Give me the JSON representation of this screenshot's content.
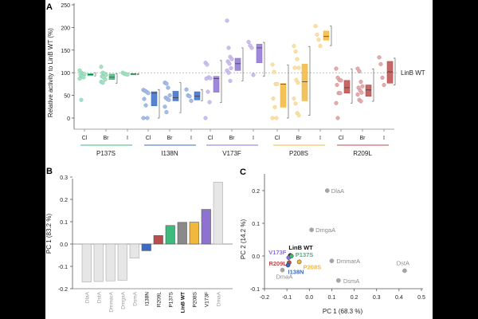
{
  "colors": {
    "P137S": "#3dbb7d",
    "I138N": "#3a6cc6",
    "V173F": "#8e72d2",
    "P208S": "#f2b73d",
    "R209L": "#b94c4c",
    "LinB WT": "#8a8a8a",
    "wildtype": "#e6e6e6",
    "scatter_wildtype": "#a6a6a6"
  },
  "chart_data": [
    {
      "panel": "A",
      "type": "box",
      "ylabel": "Relative activity to LinB WT (%)",
      "ylim": [
        -20,
        250
      ],
      "yticks": [
        0,
        50,
        100,
        150,
        200,
        250
      ],
      "reference_line": {
        "value": 100,
        "label": "LinB WT"
      },
      "groups": [
        {
          "name": "P137S",
          "conditions": [
            {
              "label": "Cl",
              "points": [
                105,
                100,
                98,
                97,
                95,
                92,
                90,
                87,
                40
              ],
              "box": [
                94,
                96,
                98
              ],
              "whisker": [
                93,
                100
              ]
            },
            {
              "label": "Br",
              "points": [
                113,
                100,
                98,
                95,
                92,
                90,
                85,
                80,
                78
              ],
              "box": [
                85,
                90,
                97
              ],
              "whisker": [
                77,
                98
              ]
            },
            {
              "label": "I",
              "points": [
                100,
                98,
                97,
                96
              ],
              "box": [
                96,
                97,
                98
              ],
              "whisker": [
                96,
                98
              ]
            }
          ]
        },
        {
          "name": "I138N",
          "conditions": [
            {
              "label": "Cl",
              "points": [
                62,
                60,
                58,
                55,
                42,
                28,
                0,
                0
              ],
              "box": [
                27,
                55,
                58
              ],
              "whisker": [
                0,
                63
              ]
            },
            {
              "label": "Br",
              "points": [
                78,
                76,
                67,
                50,
                45,
                42,
                40,
                25,
                13
              ],
              "box": [
                38,
                45,
                59
              ],
              "whisker": [
                12,
                78
              ]
            },
            {
              "label": "I",
              "points": [
                63,
                50,
                48,
                38
              ],
              "box": [
                40,
                48,
                58
              ],
              "whisker": [
                38,
                63
              ]
            }
          ]
        },
        {
          "name": "V173F",
          "conditions": [
            {
              "label": "Cl",
              "points": [
                122,
                118,
                90,
                88,
                87,
                58,
                35,
                0
              ],
              "box": [
                57,
                87,
                92
              ],
              "whisker": [
                34,
                127
              ]
            },
            {
              "label": "Br",
              "points": [
                215,
                155,
                135,
                130,
                125,
                120,
                110,
                105,
                100,
                82
              ],
              "box": [
                105,
                120,
                132
              ],
              "whisker": [
                82,
                155
              ]
            },
            {
              "label": "I",
              "points": [
                168,
                160,
                155,
                95
              ],
              "box": [
                122,
                155,
                163
              ],
              "whisker": [
                92,
                167
              ]
            }
          ]
        },
        {
          "name": "P208S",
          "conditions": [
            {
              "label": "Cl",
              "points": [
                118,
                102,
                75,
                75,
                43,
                24,
                0,
                0
              ],
              "box": [
                24,
                75,
                76
              ],
              "whisker": [
                0,
                117
              ]
            },
            {
              "label": "Br",
              "points": [
                159,
                147,
                130,
                111,
                111,
                84,
                78,
                43,
                32,
                11,
                6
              ],
              "box": [
                38,
                80,
                119
              ],
              "whisker": [
                6,
                158
              ]
            },
            {
              "label": "I",
              "points": [
                203,
                184,
                173,
                159
              ],
              "box": [
                172,
                180,
                192
              ],
              "whisker": [
                160,
                203
              ]
            }
          ]
        },
        {
          "name": "R209L",
          "conditions": [
            {
              "label": "Cl",
              "points": [
                109,
                89,
                84,
                83,
                73,
                55,
                55,
                33,
                0
              ],
              "box": [
                55,
                67,
                83
              ],
              "whisker": [
                33,
                108
              ]
            },
            {
              "label": "Br",
              "points": [
                109,
                103,
                80,
                70,
                67,
                61,
                56,
                52,
                40,
                37
              ],
              "box": [
                48,
                62,
                73
              ],
              "whisker": [
                37,
                108
              ]
            },
            {
              "label": "I",
              "points": [
                134,
                119,
                89,
                73
              ],
              "box": [
                77,
                102,
                125
              ],
              "whisker": [
                73,
                132
              ]
            }
          ]
        }
      ]
    },
    {
      "panel": "B",
      "type": "bar",
      "ylabel": "PC 1 (83.2 %)",
      "ylim": [
        -0.2,
        0.3
      ],
      "yticks": [
        "-0.2",
        "-0.1",
        "0.0",
        "0.1",
        "0.2",
        "0.3"
      ],
      "categories": [
        "DlaA",
        "DstA",
        "DmmarA",
        "DmgaA",
        "DsmA",
        "I138N",
        "R209L",
        "P137S",
        "LinB WT",
        "P208S",
        "V173F",
        "DmaA"
      ],
      "values": [
        -0.17,
        -0.168,
        -0.165,
        -0.162,
        -0.063,
        -0.03,
        0.038,
        0.083,
        0.097,
        0.098,
        0.155,
        0.277
      ],
      "kinds": [
        "wt",
        "wt",
        "wt",
        "wt",
        "wt",
        "mut",
        "mut",
        "mut",
        "ref",
        "mut",
        "mut",
        "wt"
      ]
    },
    {
      "panel": "C",
      "type": "scatter",
      "xlabel": "PC 1 (68.3 %)",
      "ylabel": "PC 2 (14.2 %)",
      "xlim": [
        -0.2,
        0.5
      ],
      "ylim": [
        -0.1,
        0.25
      ],
      "xticks": [
        "-0.2",
        "-0.1",
        "0.0",
        "0.1",
        "0.2",
        "0.3",
        "0.4",
        "0.5"
      ],
      "yticks": [
        "-0.1",
        "0.0",
        "0.1",
        "0.2"
      ],
      "points": [
        {
          "label": "DlaA",
          "x": 0.08,
          "y": 0.2,
          "kind": "wt"
        },
        {
          "label": "DmgaA",
          "x": 0.01,
          "y": 0.08,
          "kind": "wt"
        },
        {
          "label": "DmmarA",
          "x": 0.1,
          "y": -0.015,
          "kind": "wt"
        },
        {
          "label": "DstA",
          "x": 0.425,
          "y": -0.045,
          "kind": "wt"
        },
        {
          "label": "DsmA",
          "x": 0.13,
          "y": -0.075,
          "kind": "wt"
        },
        {
          "label": "DmaA",
          "x": -0.12,
          "y": -0.043,
          "kind": "wt"
        },
        {
          "label": "LinB WT",
          "x": -0.085,
          "y": 0.002,
          "kind": "ref"
        },
        {
          "label": "V173F",
          "x": -0.092,
          "y": -0.005,
          "kind": "mut"
        },
        {
          "label": "P137S",
          "x": -0.08,
          "y": 0.0,
          "kind": "mut"
        },
        {
          "label": "R209L",
          "x": -0.09,
          "y": -0.02,
          "kind": "mut"
        },
        {
          "label": "I138N",
          "x": -0.095,
          "y": -0.028,
          "kind": "mut"
        },
        {
          "label": "P208S",
          "x": -0.045,
          "y": -0.018,
          "kind": "mut"
        }
      ]
    }
  ]
}
